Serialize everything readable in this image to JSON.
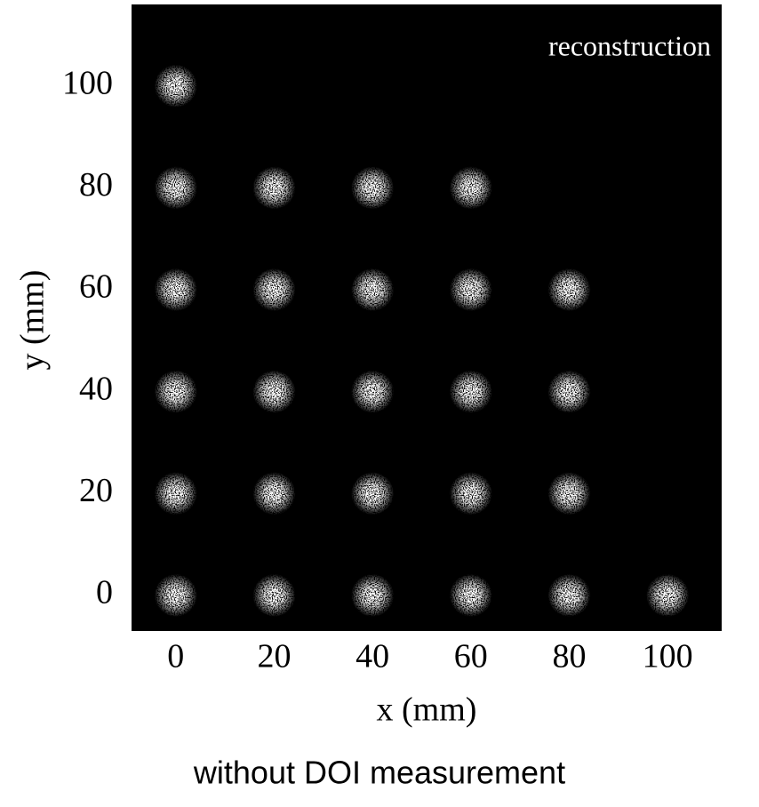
{
  "chart_data": {
    "type": "scatter",
    "annotation": "reconstruction",
    "xlabel": "x (mm)",
    "ylabel": "y (mm)",
    "caption": "without DOI measurement",
    "x": [
      0,
      0,
      20,
      40,
      60,
      0,
      20,
      40,
      60,
      80,
      0,
      20,
      40,
      60,
      80,
      0,
      20,
      40,
      60,
      80,
      0,
      20,
      40,
      60,
      80,
      100
    ],
    "values": [
      100,
      80,
      80,
      80,
      80,
      60,
      60,
      60,
      60,
      60,
      40,
      40,
      40,
      40,
      40,
      20,
      20,
      20,
      20,
      20,
      0,
      0,
      0,
      0,
      0,
      0
    ],
    "color": "#ffffff",
    "background": "#000000",
    "xlim": [
      -9,
      111
    ],
    "ylim": [
      -7,
      116
    ],
    "xticks": [
      0,
      20,
      40,
      60,
      80,
      100
    ],
    "yticks": [
      0,
      20,
      40,
      60,
      80,
      100
    ]
  }
}
